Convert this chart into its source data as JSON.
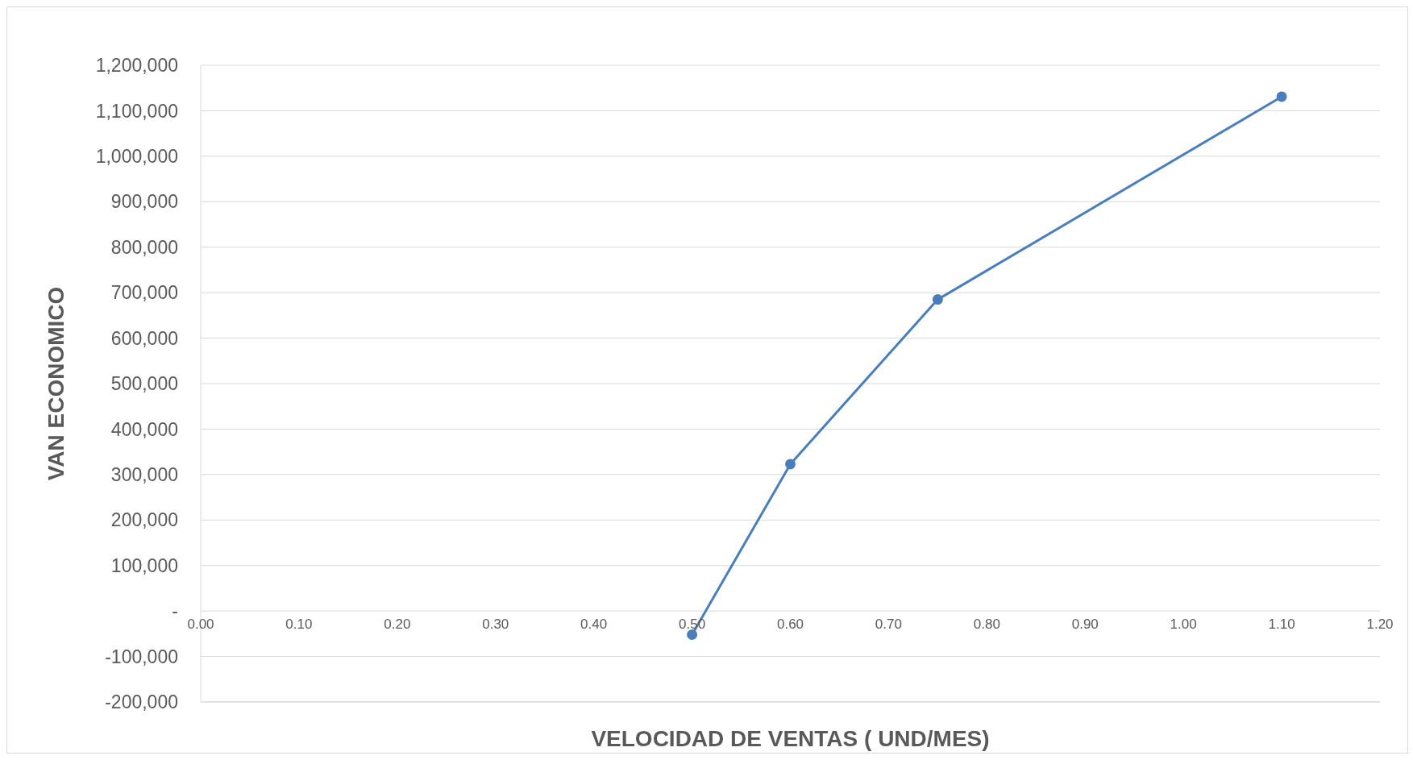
{
  "chart_data": {
    "type": "line",
    "xlabel": "VELOCIDAD DE VENTAS ( UND/MES)",
    "ylabel": "VAN ECONOMICO",
    "x": [
      0.5,
      0.6,
      0.75,
      1.1
    ],
    "series": [
      {
        "color": "#4a7ebb",
        "values": [
          -52000,
          323000,
          685000,
          1131000
        ]
      }
    ],
    "xlim": [
      0,
      1.2
    ],
    "xticks": [
      {
        "value": 0,
        "label": "0.00"
      },
      {
        "value": 0.1,
        "label": "0.10"
      },
      {
        "value": 0.2,
        "label": "0.20"
      },
      {
        "value": 0.3,
        "label": "0.30"
      },
      {
        "value": 0.4,
        "label": "0.40"
      },
      {
        "value": 0.5,
        "label": "0.50"
      },
      {
        "value": 0.6,
        "label": "0.60"
      },
      {
        "value": 0.7,
        "label": "0.70"
      },
      {
        "value": 0.8,
        "label": "0.80"
      },
      {
        "value": 0.9,
        "label": "0.90"
      },
      {
        "value": 1,
        "label": "1.00"
      },
      {
        "value": 1.1,
        "label": "1.10"
      },
      {
        "value": 1.2,
        "label": "1.20"
      }
    ],
    "ylim": [
      -200000,
      1200000
    ],
    "yticks": [
      {
        "value": -200000,
        "label": "-200,000"
      },
      {
        "value": -100000,
        "label": "-100,000"
      },
      {
        "value": 0,
        "label": "-"
      },
      {
        "value": 100000,
        "label": "100,000"
      },
      {
        "value": 200000,
        "label": "200,000"
      },
      {
        "value": 300000,
        "label": "300,000"
      },
      {
        "value": 400000,
        "label": "400,000"
      },
      {
        "value": 500000,
        "label": "500,000"
      },
      {
        "value": 600000,
        "label": "600,000"
      },
      {
        "value": 700000,
        "label": "700,000"
      },
      {
        "value": 800000,
        "label": "800,000"
      },
      {
        "value": 900000,
        "label": "900,000"
      },
      {
        "value": 1000000,
        "label": "1,000,000"
      },
      {
        "value": 1100000,
        "label": "1,100,000"
      },
      {
        "value": 1200000,
        "label": "1,200,000"
      }
    ],
    "grid": "y",
    "marker": "circle",
    "line_style": "solid",
    "legend": false
  }
}
